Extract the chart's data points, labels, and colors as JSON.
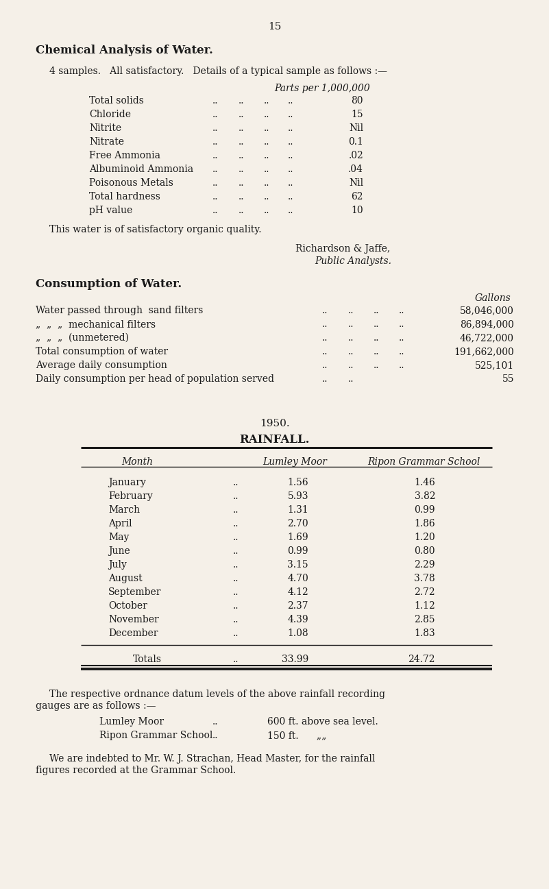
{
  "page_number": "15",
  "bg_color": "#f5f0e8",
  "text_color": "#1a1a1a",
  "section1_title": "Chemical Analysis of Water.",
  "section1_intro": "4 samples.   All satisfactory.   Details of a typical sample as follows :—",
  "parts_per_label": "Parts per 1,000,000",
  "chem_items": [
    [
      "Total solids",
      "80"
    ],
    [
      "Chloride",
      "15"
    ],
    [
      "Nitrite",
      "Nil"
    ],
    [
      "Nitrate",
      "0.1"
    ],
    [
      "Free Ammonia",
      ".02"
    ],
    [
      "Albuminoid Ammonia",
      ".04"
    ],
    [
      "Poisonous Metals",
      "Nil"
    ],
    [
      "Total hardness",
      "62"
    ],
    [
      "pH value",
      "10"
    ]
  ],
  "quality_text": "This water is of satisfactory organic quality.",
  "analysts_line1": "Richardson & Jaffe,",
  "analysts_line2": "Public Analysts.",
  "section2_title": "Consumption of Water.",
  "gallons_label": "Gallons",
  "consumption_rows": [
    [
      "Water passed through  sand filters",
      "..",
      "..",
      "..",
      "..",
      "58,046,000"
    ],
    [
      "„  „  „  mechanical filters",
      "..",
      "..",
      "..",
      "..",
      "86,894,000"
    ],
    [
      "„  „  „  (unmetered)",
      "..",
      "..",
      "..",
      "..",
      "46,722,000"
    ],
    [
      "Total consumption of water",
      "..",
      "..",
      "..",
      "..",
      "191,662,000"
    ],
    [
      "Average daily consumption",
      "..",
      "..",
      "..",
      "..",
      "525,101"
    ],
    [
      "Daily consumption per head of population served",
      "..",
      "..",
      "",
      "",
      "55"
    ]
  ],
  "year_label": "1950.",
  "rainfall_title": "RAINFALL.",
  "rain_col_headers": [
    "Month",
    "Lumley Moor",
    "Ripon Grammar School"
  ],
  "rain_months": [
    "January",
    "February",
    "March",
    "April",
    "May",
    "June",
    "July",
    "August",
    "September",
    "October",
    "November",
    "December"
  ],
  "rain_lumley": [
    "1.56",
    "5.93",
    "1.31",
    "2.70",
    "1.69",
    "0.99",
    "3.15",
    "4.70",
    "4.12",
    "2.37",
    "4.39",
    "1.08"
  ],
  "rain_ripon": [
    "1.46",
    "3.82",
    "0.99",
    "1.86",
    "1.20",
    "0.80",
    "2.29",
    "3.78",
    "2.72",
    "1.12",
    "2.85",
    "1.83"
  ],
  "rain_totals_label": "Totals",
  "rain_lumley_total": "33.99",
  "rain_ripon_total": "24.72",
  "footnote1": "The respective ordnance datum levels of the above rainfall recording",
  "footnote1b": "gauges are as follows :—",
  "footnote2a": "Lumley Moor",
  "footnote2b": "··          600 ft. above sea level.",
  "footnote3a": "Ripon Grammar School",
  "footnote3b": "··    150 ft.         „„",
  "footnote4": "We are indebted to Mr. W. J. Strachan, Head Master, for the rainfall",
  "footnote4b": "figures recorded at the Grammar School."
}
